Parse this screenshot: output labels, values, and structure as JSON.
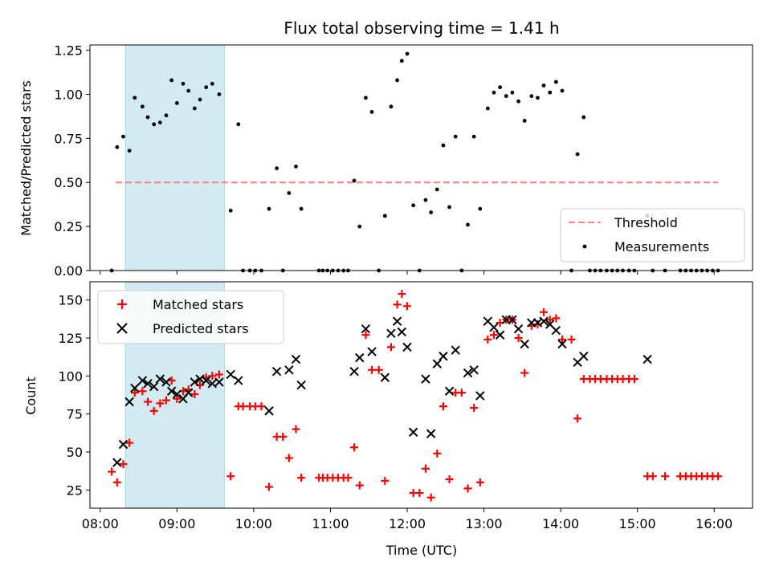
{
  "chart_data": [
    {
      "type": "scatter",
      "panel": "top",
      "title": "Flux total observing time = 1.41 h",
      "ylabel": "Matched/Predicted stars",
      "xlabel": "",
      "ylim": [
        0,
        1.28
      ],
      "xlim": [
        7.866,
        16.5
      ],
      "y_ticks": [
        "0.00",
        "0.25",
        "0.50",
        "0.75",
        "1.00",
        "1.25"
      ],
      "colors": {
        "threshold": "#ff7f7f",
        "measurements": "#000000",
        "shade": "#add8e6"
      },
      "shaded_region": [
        8.33,
        9.62
      ],
      "threshold": {
        "name": "Threshold",
        "value": 0.5,
        "x_range": [
          8.2,
          16.05
        ]
      },
      "legend": [
        "Threshold",
        "Measurements"
      ],
      "measurements": [
        [
          8.15,
          0.0
        ],
        [
          8.22,
          0.7
        ],
        [
          8.3,
          0.76
        ],
        [
          8.38,
          0.68
        ],
        [
          8.45,
          0.98
        ],
        [
          8.55,
          0.93
        ],
        [
          8.62,
          0.87
        ],
        [
          8.7,
          0.83
        ],
        [
          8.78,
          0.84
        ],
        [
          8.86,
          0.88
        ],
        [
          8.93,
          1.08
        ],
        [
          9.0,
          0.95
        ],
        [
          9.08,
          1.06
        ],
        [
          9.15,
          1.02
        ],
        [
          9.23,
          0.92
        ],
        [
          9.3,
          0.97
        ],
        [
          9.38,
          1.04
        ],
        [
          9.46,
          1.06
        ],
        [
          9.55,
          1.0
        ],
        [
          9.7,
          0.34
        ],
        [
          9.8,
          0.83
        ],
        [
          9.86,
          0.0
        ],
        [
          9.95,
          0.0
        ],
        [
          10.02,
          0.0
        ],
        [
          10.1,
          0.0
        ],
        [
          10.2,
          0.35
        ],
        [
          10.3,
          0.58
        ],
        [
          10.38,
          0.0
        ],
        [
          10.46,
          0.44
        ],
        [
          10.55,
          0.59
        ],
        [
          10.62,
          0.35
        ],
        [
          10.85,
          0.0
        ],
        [
          10.9,
          0.0
        ],
        [
          10.96,
          0.0
        ],
        [
          11.03,
          0.0
        ],
        [
          11.1,
          0.0
        ],
        [
          11.17,
          0.0
        ],
        [
          11.23,
          0.0
        ],
        [
          11.31,
          0.51
        ],
        [
          11.38,
          0.25
        ],
        [
          11.46,
          0.98
        ],
        [
          11.54,
          0.9
        ],
        [
          11.63,
          0.0
        ],
        [
          11.71,
          0.31
        ],
        [
          11.79,
          0.93
        ],
        [
          11.87,
          1.08
        ],
        [
          11.93,
          1.19
        ],
        [
          12.0,
          1.23
        ],
        [
          12.08,
          0.37
        ],
        [
          12.16,
          0.0
        ],
        [
          12.24,
          0.4
        ],
        [
          12.31,
          0.33
        ],
        [
          12.39,
          0.46
        ],
        [
          12.47,
          0.71
        ],
        [
          12.55,
          0.36
        ],
        [
          12.63,
          0.76
        ],
        [
          12.71,
          0.0
        ],
        [
          12.79,
          0.26
        ],
        [
          12.87,
          0.76
        ],
        [
          12.95,
          0.35
        ],
        [
          13.05,
          0.92
        ],
        [
          13.13,
          1.01
        ],
        [
          13.21,
          1.04
        ],
        [
          13.29,
          0.99
        ],
        [
          13.37,
          1.01
        ],
        [
          13.45,
          0.96
        ],
        [
          13.53,
          0.85
        ],
        [
          13.62,
          0.99
        ],
        [
          13.7,
          0.98
        ],
        [
          13.78,
          1.05
        ],
        [
          13.86,
          1.01
        ],
        [
          13.94,
          1.07
        ],
        [
          14.02,
          1.02
        ],
        [
          14.14,
          0.0
        ],
        [
          14.22,
          0.66
        ],
        [
          14.3,
          0.87
        ],
        [
          14.38,
          0.0
        ],
        [
          14.45,
          0.0
        ],
        [
          14.52,
          0.0
        ],
        [
          14.6,
          0.0
        ],
        [
          14.67,
          0.0
        ],
        [
          14.74,
          0.0
        ],
        [
          14.81,
          0.0
        ],
        [
          14.89,
          0.0
        ],
        [
          14.96,
          0.0
        ],
        [
          15.13,
          0.31
        ],
        [
          15.2,
          0.0
        ],
        [
          15.36,
          0.0
        ],
        [
          15.56,
          0.0
        ],
        [
          15.63,
          0.0
        ],
        [
          15.7,
          0.0
        ],
        [
          15.77,
          0.0
        ],
        [
          15.84,
          0.0
        ],
        [
          15.91,
          0.0
        ],
        [
          15.98,
          0.0
        ],
        [
          16.05,
          0.0
        ]
      ]
    },
    {
      "type": "scatter",
      "panel": "bottom",
      "title": "",
      "xlabel": "Time (UTC)",
      "ylabel": "Count",
      "ylim": [
        13,
        162
      ],
      "xlim": [
        7.866,
        16.5
      ],
      "y_ticks": [
        "25",
        "50",
        "75",
        "100",
        "125",
        "150"
      ],
      "x_ticks": [
        "08:00",
        "09:00",
        "10:00",
        "11:00",
        "12:00",
        "13:00",
        "14:00",
        "15:00",
        "16:00"
      ],
      "colors": {
        "matched": "#ff0000",
        "predicted": "#000000",
        "shade": "#add8e6"
      },
      "shaded_region": [
        8.33,
        9.62
      ],
      "legend": [
        "Matched stars",
        "Predicted stars"
      ],
      "matched": [
        [
          8.15,
          37
        ],
        [
          8.22,
          30
        ],
        [
          8.3,
          42
        ],
        [
          8.38,
          56
        ],
        [
          8.45,
          89
        ],
        [
          8.55,
          90
        ],
        [
          8.62,
          83
        ],
        [
          8.7,
          77
        ],
        [
          8.78,
          82
        ],
        [
          8.86,
          84
        ],
        [
          8.93,
          97
        ],
        [
          9.0,
          85
        ],
        [
          9.08,
          90
        ],
        [
          9.15,
          91
        ],
        [
          9.23,
          88
        ],
        [
          9.3,
          94
        ],
        [
          9.38,
          99
        ],
        [
          9.46,
          100
        ],
        [
          9.55,
          101
        ],
        [
          9.7,
          34
        ],
        [
          9.8,
          80
        ],
        [
          9.86,
          80
        ],
        [
          9.95,
          80
        ],
        [
          10.02,
          80
        ],
        [
          10.1,
          80
        ],
        [
          10.2,
          27
        ],
        [
          10.3,
          60
        ],
        [
          10.38,
          60
        ],
        [
          10.46,
          46
        ],
        [
          10.55,
          65
        ],
        [
          10.62,
          33
        ],
        [
          10.85,
          33
        ],
        [
          10.9,
          33
        ],
        [
          10.96,
          33
        ],
        [
          11.03,
          33
        ],
        [
          11.1,
          33
        ],
        [
          11.17,
          33
        ],
        [
          11.23,
          33
        ],
        [
          11.31,
          53
        ],
        [
          11.38,
          28
        ],
        [
          11.46,
          127
        ],
        [
          11.54,
          104
        ],
        [
          11.63,
          104
        ],
        [
          11.71,
          31
        ],
        [
          11.79,
          119
        ],
        [
          11.87,
          147
        ],
        [
          11.93,
          154
        ],
        [
          12.0,
          146
        ],
        [
          12.08,
          23
        ],
        [
          12.16,
          23
        ],
        [
          12.24,
          39
        ],
        [
          12.31,
          20
        ],
        [
          12.39,
          49
        ],
        [
          12.47,
          80
        ],
        [
          12.55,
          32
        ],
        [
          12.63,
          89
        ],
        [
          12.71,
          89
        ],
        [
          12.79,
          26
        ],
        [
          12.87,
          79
        ],
        [
          12.95,
          30
        ],
        [
          13.05,
          124
        ],
        [
          13.13,
          127
        ],
        [
          13.21,
          135
        ],
        [
          13.29,
          137
        ],
        [
          13.37,
          137
        ],
        [
          13.45,
          125
        ],
        [
          13.53,
          102
        ],
        [
          13.62,
          133
        ],
        [
          13.7,
          134
        ],
        [
          13.78,
          142
        ],
        [
          13.86,
          137
        ],
        [
          13.94,
          138
        ],
        [
          14.02,
          124
        ],
        [
          14.14,
          124
        ],
        [
          14.22,
          72
        ],
        [
          14.3,
          98
        ],
        [
          14.38,
          98
        ],
        [
          14.45,
          98
        ],
        [
          14.52,
          98
        ],
        [
          14.6,
          98
        ],
        [
          14.67,
          98
        ],
        [
          14.74,
          98
        ],
        [
          14.81,
          98
        ],
        [
          14.89,
          98
        ],
        [
          14.96,
          98
        ],
        [
          15.13,
          34
        ],
        [
          15.2,
          34
        ],
        [
          15.36,
          34
        ],
        [
          15.56,
          34
        ],
        [
          15.63,
          34
        ],
        [
          15.7,
          34
        ],
        [
          15.77,
          34
        ],
        [
          15.84,
          34
        ],
        [
          15.91,
          34
        ],
        [
          15.98,
          34
        ],
        [
          16.05,
          34
        ]
      ],
      "predicted": [
        [
          8.22,
          43
        ],
        [
          8.3,
          55
        ],
        [
          8.38,
          83
        ],
        [
          8.45,
          92
        ],
        [
          8.55,
          97
        ],
        [
          8.62,
          95
        ],
        [
          8.7,
          93
        ],
        [
          8.78,
          98
        ],
        [
          8.86,
          96
        ],
        [
          8.93,
          90
        ],
        [
          9.0,
          88
        ],
        [
          9.08,
          85
        ],
        [
          9.15,
          89
        ],
        [
          9.23,
          96
        ],
        [
          9.3,
          98
        ],
        [
          9.38,
          97
        ],
        [
          9.46,
          95
        ],
        [
          9.55,
          96
        ],
        [
          9.7,
          101
        ],
        [
          9.8,
          97
        ],
        [
          10.2,
          77
        ],
        [
          10.3,
          103
        ],
        [
          10.46,
          104
        ],
        [
          10.55,
          111
        ],
        [
          10.62,
          94
        ],
        [
          11.31,
          103
        ],
        [
          11.38,
          112
        ],
        [
          11.46,
          131
        ],
        [
          11.54,
          116
        ],
        [
          11.71,
          99
        ],
        [
          11.79,
          128
        ],
        [
          11.87,
          136
        ],
        [
          11.93,
          129
        ],
        [
          12.0,
          119
        ],
        [
          12.08,
          63
        ],
        [
          12.24,
          98
        ],
        [
          12.31,
          62
        ],
        [
          12.39,
          108
        ],
        [
          12.47,
          113
        ],
        [
          12.55,
          90
        ],
        [
          12.63,
          117
        ],
        [
          12.79,
          102
        ],
        [
          12.87,
          104
        ],
        [
          12.95,
          87
        ],
        [
          13.05,
          136
        ],
        [
          13.13,
          132
        ],
        [
          13.21,
          127
        ],
        [
          13.29,
          137
        ],
        [
          13.37,
          137
        ],
        [
          13.45,
          131
        ],
        [
          13.53,
          121
        ],
        [
          13.62,
          135
        ],
        [
          13.7,
          135
        ],
        [
          13.78,
          136
        ],
        [
          13.86,
          134
        ],
        [
          13.94,
          130
        ],
        [
          14.02,
          121
        ],
        [
          14.22,
          109
        ],
        [
          14.3,
          113
        ],
        [
          15.13,
          111
        ]
      ]
    }
  ]
}
